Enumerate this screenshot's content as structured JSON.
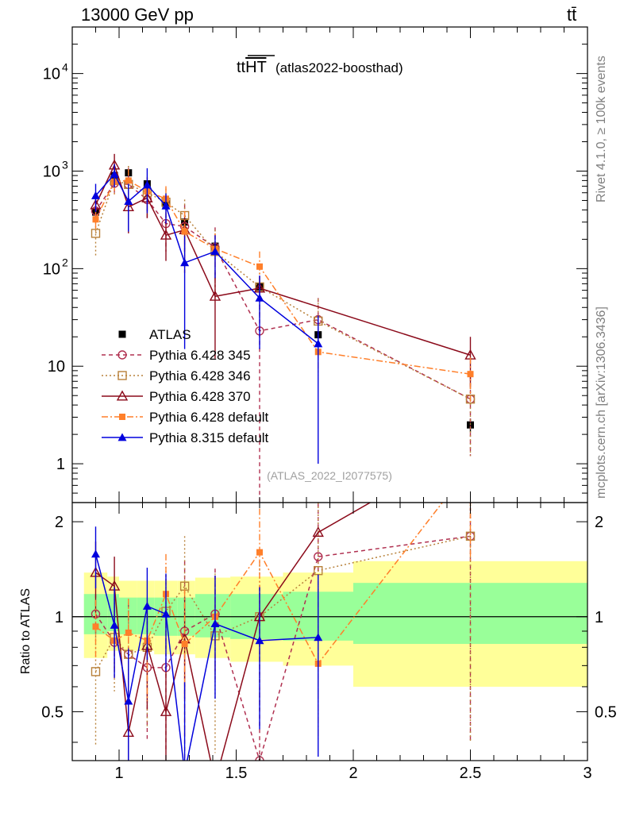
{
  "header": {
    "energy_label": "13000 GeV pp",
    "process_label": "tt̄"
  },
  "side_texts": {
    "rivet": "Rivet 4.1.0, ≥ 100k events",
    "mcplots": "mcplots.cern.ch [arXiv:1306.3436]"
  },
  "colors": {
    "band_outer": "#ffff99",
    "band_inner": "#99ff99",
    "atlas": "#000000",
    "p345": "#b03050",
    "p346": "#b8813a",
    "p370": "#8b0a1a",
    "p6def": "#ff7f2a",
    "p8def": "#0000dd"
  },
  "chart_data": {
    "type": "line",
    "title_main": "tt",
    "title_over": "HT",
    "title_suffix": "(atlas2022-boosthad)",
    "analysis_id": "(ATLAS_2022_I2077575)",
    "xlim": [
      0.8,
      3.0
    ],
    "ylim_main": [
      0.4,
      30000
    ],
    "ylim_ratio": [
      0.35,
      2.3
    ],
    "ratio_ylabel": "Ratio to ATLAS",
    "xticks": [
      {
        "v": 1,
        "label": "1"
      },
      {
        "v": 1.5,
        "label": "1.5"
      },
      {
        "v": 2,
        "label": "2"
      },
      {
        "v": 2.5,
        "label": "2.5"
      },
      {
        "v": 3,
        "label": "3"
      }
    ],
    "main_yticks": [
      {
        "v": 1,
        "label": "1"
      },
      {
        "v": 10,
        "label": "10"
      },
      {
        "v": 100,
        "label": "10",
        "sup": "2"
      },
      {
        "v": 1000,
        "label": "10",
        "sup": "3"
      },
      {
        "v": 10000,
        "label": "10",
        "sup": "4"
      }
    ],
    "ratio_yticks": [
      {
        "v": 0.5,
        "label": "0.5"
      },
      {
        "v": 1,
        "label": "1"
      },
      {
        "v": 2,
        "label": "2"
      }
    ],
    "x_edges": [
      0.85,
      0.95,
      1.0,
      1.075,
      1.15,
      1.25,
      1.325,
      1.475,
      1.7,
      2.0,
      3.0
    ],
    "x_centers": [
      0.9,
      0.98,
      1.04,
      1.12,
      1.2,
      1.28,
      1.41,
      1.6,
      1.85,
      2.5
    ],
    "band_inner": [
      [
        0.88,
        1.18
      ],
      [
        0.9,
        1.18
      ],
      [
        0.88,
        1.15
      ],
      [
        0.88,
        1.15
      ],
      [
        0.87,
        1.15
      ],
      [
        0.87,
        1.15
      ],
      [
        0.86,
        1.18
      ],
      [
        0.85,
        1.18
      ],
      [
        0.84,
        1.2
      ],
      [
        0.82,
        1.28
      ]
    ],
    "band_outer": [
      [
        0.74,
        1.38
      ],
      [
        0.78,
        1.34
      ],
      [
        0.78,
        1.3
      ],
      [
        0.78,
        1.3
      ],
      [
        0.76,
        1.3
      ],
      [
        0.76,
        1.3
      ],
      [
        0.74,
        1.33
      ],
      [
        0.72,
        1.34
      ],
      [
        0.7,
        1.38
      ],
      [
        0.6,
        1.5
      ]
    ],
    "series": [
      {
        "name": "ATLAS",
        "style": "data",
        "values": [
          380,
          900,
          960,
          740,
          460,
          300,
          170,
          65,
          21,
          2.5
        ],
        "errors": [
          40,
          80,
          80,
          60,
          40,
          30,
          20,
          8,
          3,
          0.4
        ],
        "ratio": null
      },
      {
        "name": "Pythia 6.428 345",
        "style": "p345",
        "values": [
          390,
          750,
          730,
          510,
          290,
          270,
          165,
          23,
          30,
          4.6
        ],
        "errors": [
          60,
          150,
          350,
          200,
          140,
          180,
          100,
          60,
          20,
          3.4
        ],
        "ratio": [
          1.02,
          0.83,
          0.76,
          0.69,
          0.69,
          0.9,
          1.02,
          0.35,
          1.55,
          1.8
        ],
        "ratio_errors": [
          0.16,
          0.17,
          0.34,
          0.28,
          0.31,
          0.6,
          0.4,
          0.9,
          1.0,
          1.4
        ]
      },
      {
        "name": "Pythia 6.428 346",
        "style": "p346",
        "values": [
          230,
          800,
          730,
          600,
          480,
          350,
          150,
          65,
          29,
          4.6
        ],
        "errors": [
          100,
          250,
          400,
          250,
          180,
          160,
          100,
          35,
          20,
          3.4
        ],
        "ratio": [
          0.67,
          0.86,
          0.76,
          0.8,
          1.04,
          1.25,
          0.87,
          1.0,
          1.4,
          1.8
        ],
        "ratio_errors": [
          0.28,
          0.28,
          0.35,
          0.35,
          0.4,
          0.55,
          0.5,
          0.5,
          0.9,
          1.4
        ]
      },
      {
        "name": "Pythia 6.428 370",
        "style": "p370",
        "values": [
          450,
          1150,
          430,
          530,
          220,
          250,
          52,
          63,
          0,
          13
        ],
        "errors": [
          100,
          350,
          200,
          200,
          100,
          100,
          40,
          0,
          0,
          7
        ],
        "ratio": [
          1.38,
          1.25,
          0.43,
          0.81,
          0.5,
          0.85,
          0.3,
          1.0,
          1.85,
          3.5
        ],
        "ratio_errors": [
          0.35,
          0.3,
          0.25,
          0.3,
          0.2,
          0.3,
          0.0,
          0.0,
          0.0,
          0.0
        ]
      },
      {
        "name": "Pythia 6.428 default",
        "style": "p6def",
        "values": [
          320,
          780,
          800,
          620,
          520,
          240,
          160,
          105,
          14,
          8.3
        ],
        "errors": [
          80,
          200,
          250,
          250,
          180,
          150,
          70,
          45,
          6,
          4
        ],
        "ratio": [
          0.93,
          0.84,
          0.89,
          0.84,
          1.18,
          0.82,
          1.0,
          1.6,
          0.71,
          3.0
        ],
        "ratio_errors": [
          0.2,
          0.2,
          0.25,
          0.3,
          0.4,
          0.4,
          0.35,
          0.6,
          0.3,
          1.5
        ]
      },
      {
        "name": "Pythia 8.315 default",
        "style": "p8def",
        "values": [
          560,
          930,
          490,
          720,
          440,
          115,
          150,
          50,
          17,
          0
        ],
        "errors": [
          180,
          250,
          250,
          350,
          150,
          100,
          70,
          35,
          16,
          0
        ],
        "ratio": [
          1.58,
          0.94,
          0.54,
          1.08,
          1.02,
          0.32,
          0.95,
          0.84,
          0.86,
          null
        ],
        "ratio_errors": [
          0.35,
          0.3,
          0.25,
          0.35,
          0.35,
          0.3,
          0.4,
          0.4,
          0.5,
          null
        ]
      }
    ]
  }
}
